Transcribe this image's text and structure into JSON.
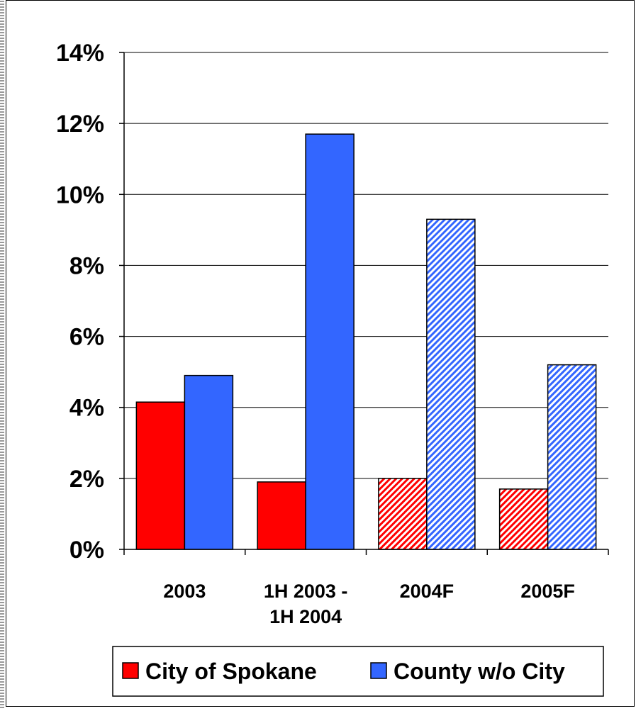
{
  "chart_data": {
    "type": "bar",
    "categories": [
      "2003",
      "1H 2003 - 1H 2004",
      "2004F",
      "2005F"
    ],
    "category_lines": [
      [
        "2003"
      ],
      [
        "1H 2003 -",
        "1H 2004"
      ],
      [
        "2004F"
      ],
      [
        "2005F"
      ]
    ],
    "series": [
      {
        "name": "City of Spokane",
        "color": "#ff0000",
        "values": [
          4.15,
          1.9,
          2.0,
          1.7
        ],
        "hatched": [
          false,
          false,
          true,
          true
        ]
      },
      {
        "name": "County w/o City",
        "color": "#3366ff",
        "values": [
          4.9,
          11.7,
          9.3,
          5.2
        ],
        "hatched": [
          false,
          false,
          true,
          true
        ]
      }
    ],
    "ylim": [
      0,
      14
    ],
    "yticks": [
      0,
      2,
      4,
      6,
      8,
      10,
      12,
      14
    ],
    "ytick_labels": [
      "0%",
      "2%",
      "4%",
      "6%",
      "8%",
      "10%",
      "12%",
      "14%"
    ],
    "grid": true,
    "legend_position": "bottom",
    "title": "",
    "xlabel": "",
    "ylabel": ""
  }
}
